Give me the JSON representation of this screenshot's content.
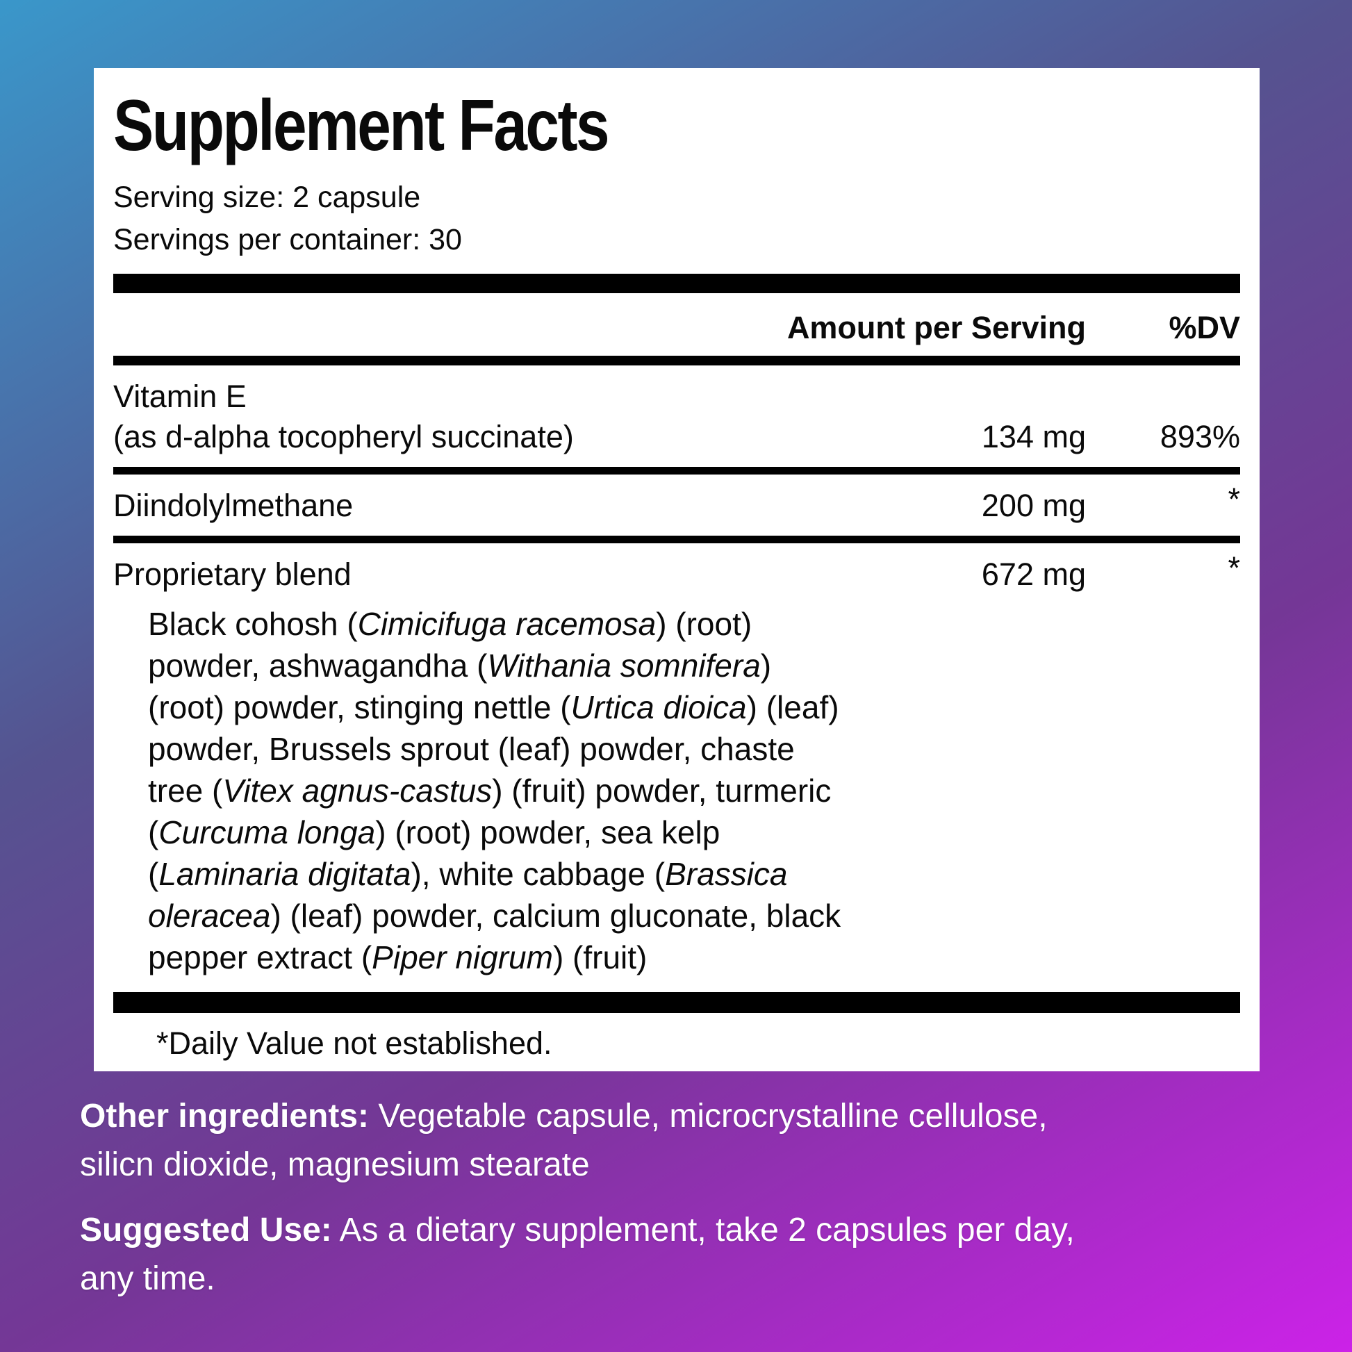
{
  "page": {
    "bg_gradient": {
      "top_left": "#3a97ca",
      "top_right": "#555390",
      "bottom_left": "#743796",
      "bottom_right": "#cc22e8"
    }
  },
  "panel": {
    "title": "Supplement Facts",
    "serving_size": "Serving size: 2 capsule",
    "servings_per_container": "Servings per container: 30",
    "col_amount": "Amount per Serving",
    "col_dv": "%DV",
    "rows": [
      {
        "name": "Vitamin E",
        "sub": "(as d-alpha tocopheryl succinate)",
        "amount": "134 mg",
        "dv": "893%"
      },
      {
        "name": "Diindolylmethane",
        "sub": "",
        "amount": "200 mg",
        "dv": "*"
      },
      {
        "name": "Proprietary blend",
        "sub": "",
        "amount": "672 mg",
        "dv": "*"
      }
    ],
    "blend_lines": [
      [
        [
          "Black cohosh (",
          0
        ],
        [
          "Cimicifuga racemosa",
          1
        ],
        [
          ") (root)",
          0
        ]
      ],
      [
        [
          "powder, ashwagandha (",
          0
        ],
        [
          "Withania somnifera",
          1
        ],
        [
          ")",
          0
        ]
      ],
      [
        [
          "(root) powder, stinging nettle (",
          0
        ],
        [
          "Urtica dioica",
          1
        ],
        [
          ") (leaf)",
          0
        ]
      ],
      [
        [
          "powder, Brussels sprout (leaf) powder, chaste",
          0
        ]
      ],
      [
        [
          "tree (",
          0
        ],
        [
          "Vitex agnus-castus",
          1
        ],
        [
          ") (fruit) powder, turmeric",
          0
        ]
      ],
      [
        [
          "(",
          0
        ],
        [
          "Curcuma longa",
          1
        ],
        [
          ") (root) powder, sea kelp",
          0
        ]
      ],
      [
        [
          "(",
          0
        ],
        [
          "Laminaria digitata",
          1
        ],
        [
          "), white cabbage (",
          0
        ],
        [
          "Brassica",
          1
        ]
      ],
      [
        [
          "oleracea",
          1
        ],
        [
          ") (leaf) powder, calcium gluconate, black",
          0
        ]
      ],
      [
        [
          "pepper extract (",
          0
        ],
        [
          "Piper nigrum",
          1
        ],
        [
          ") (fruit)",
          0
        ]
      ]
    ],
    "footnote": "*Daily Value not established."
  },
  "notes": {
    "lines": [
      {
        "label": "Other ingredients:",
        "text": " Vegetable capsule, microcrystalline cellulose,"
      },
      {
        "label": "",
        "text": "silicn dioxide, magnesium stearate"
      },
      {
        "label": "Suggested Use:",
        "text": " As a dietary supplement, take 2 capsules per day,"
      },
      {
        "label": "",
        "text": "any time."
      }
    ]
  }
}
